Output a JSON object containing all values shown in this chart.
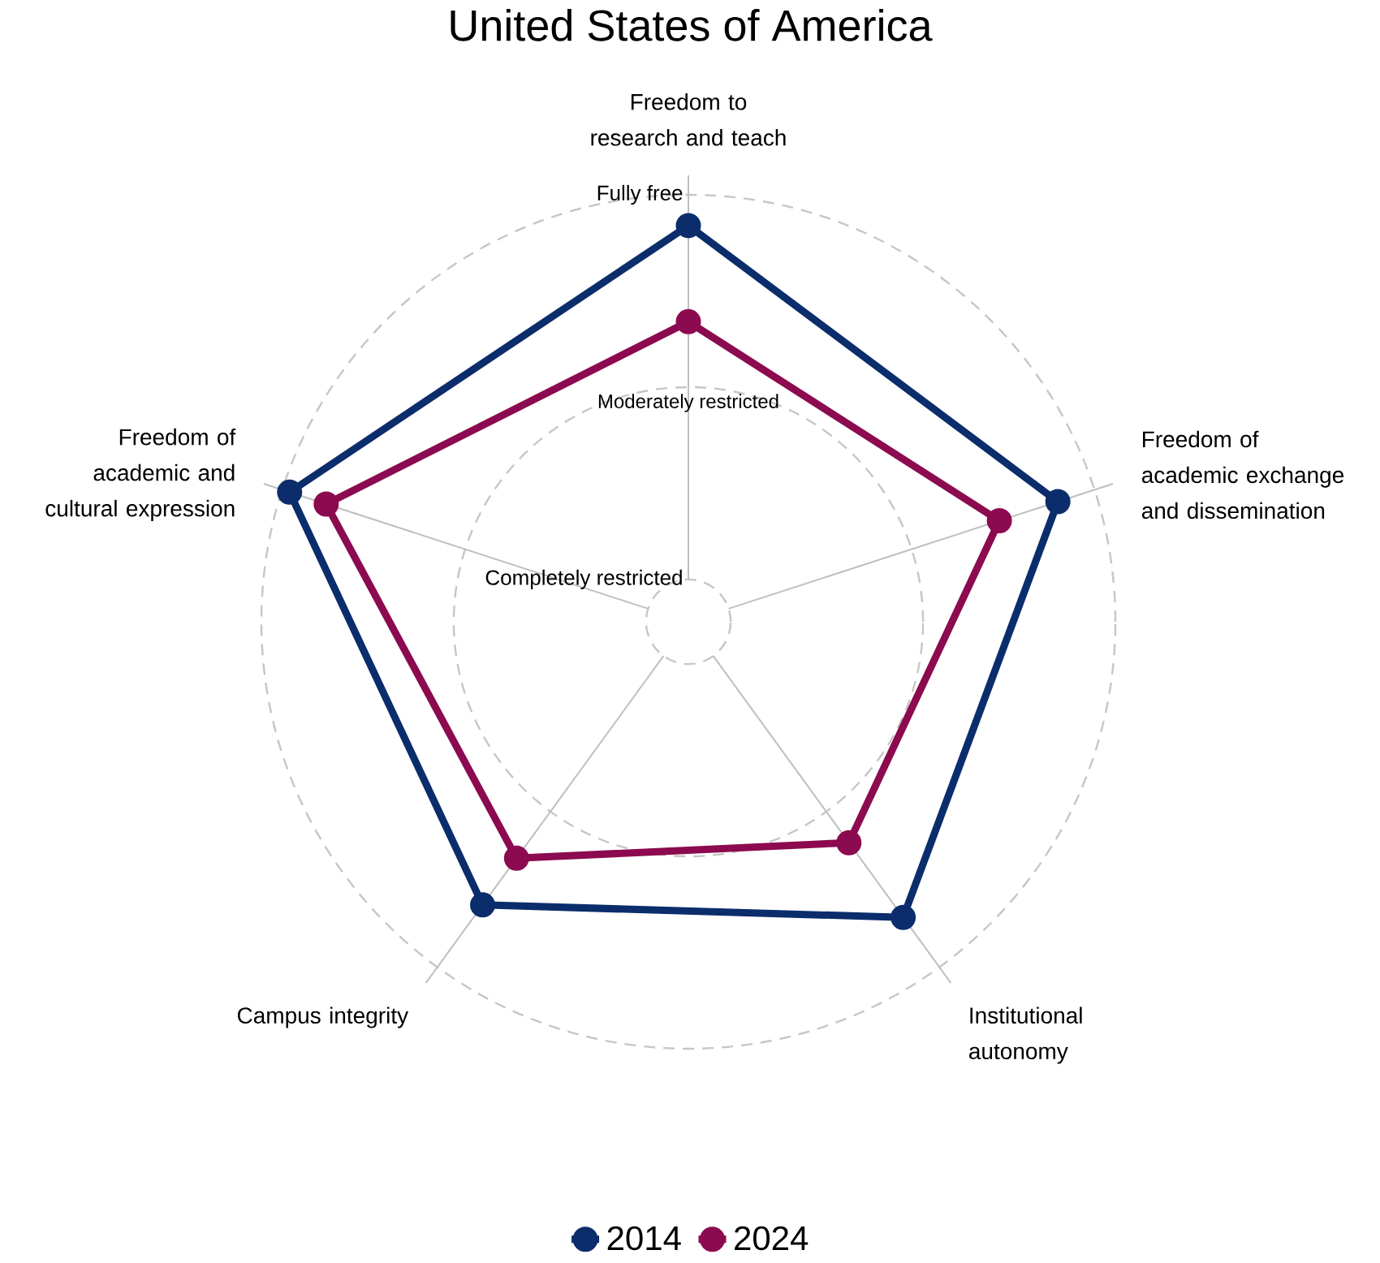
{
  "chart_data": {
    "type": "radar",
    "title": "United States of America",
    "categories": [
      "Freedom to research and teach",
      "Freedom of academic exchange and dissemination",
      "Institutional autonomy",
      "Campus integrity",
      "Freedom of academic and cultural expression"
    ],
    "series": [
      {
        "name": "2014",
        "color": "#0b2d6b",
        "values": [
          0.92,
          0.9,
          0.84,
          0.8,
          0.98
        ]
      },
      {
        "name": "2024",
        "color": "#8c0a4f",
        "values": [
          0.67,
          0.74,
          0.6,
          0.65,
          0.88
        ]
      }
    ],
    "ylim": [
      -0.11,
      1
    ],
    "yticks": [
      {
        "value": 0,
        "label": "Completely restricted"
      },
      {
        "value": 0.5,
        "label": "Moderately restricted"
      },
      {
        "value": 1,
        "label": "Fully free"
      }
    ],
    "grid": true,
    "legend": "bottom",
    "marker": "circle",
    "line_style": "solid"
  }
}
